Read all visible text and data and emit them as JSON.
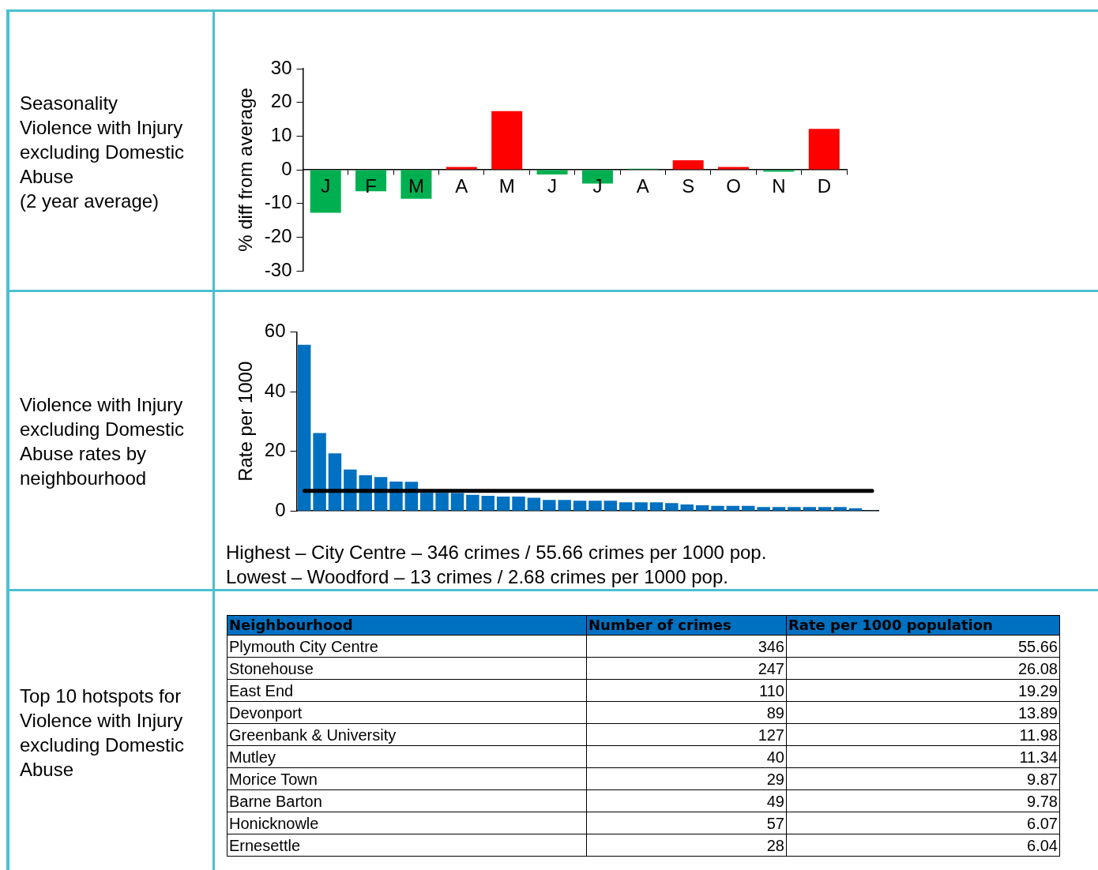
{
  "chart_data": [
    {
      "type": "bar",
      "title": "Seasonality\nViolence with Injury excluding Domestic Abuse\n(2 year average)",
      "ylabel": "% diff from average",
      "categories": [
        "J",
        "F",
        "M",
        "A",
        "M",
        "J",
        "J",
        "A",
        "S",
        "O",
        "N",
        "D"
      ],
      "values": [
        -12.8,
        -6.4,
        -8.6,
        0.8,
        17.4,
        -1.4,
        -4.1,
        0.3,
        2.8,
        0.8,
        -0.6,
        12.1
      ],
      "colors": [
        "#00b050",
        "#00b050",
        "#00b050",
        "#ff0000",
        "#ff0000",
        "#00b050",
        "#00b050",
        "#00b050",
        "#ff0000",
        "#ff0000",
        "#00b050",
        "#ff0000"
      ],
      "ylim": [
        -30,
        30
      ],
      "yticks": [
        -30,
        -20,
        -10,
        0,
        10,
        20,
        30
      ],
      "grid": false,
      "legend": false
    },
    {
      "type": "bar",
      "title": "Violence with Injury excluding Domestic Abuse rates by neighbourhood",
      "ylabel": "Rate per 1000",
      "categories": [
        null,
        null,
        null,
        null,
        null,
        null,
        null,
        null,
        null,
        null,
        null,
        null,
        null,
        null,
        null,
        null,
        null,
        null,
        null,
        null,
        null,
        null,
        null,
        null,
        null,
        null,
        null,
        null,
        null,
        null,
        null,
        null,
        null,
        null,
        null,
        null,
        null,
        null
      ],
      "values": [
        55.66,
        26.08,
        19.29,
        13.89,
        11.98,
        11.34,
        9.87,
        9.78,
        6.07,
        6.04,
        6.0,
        5.4,
        5.1,
        4.8,
        4.8,
        4.4,
        3.7,
        3.7,
        3.4,
        3.4,
        3.4,
        2.9,
        2.9,
        2.9,
        2.6,
        2.2,
        1.9,
        1.7,
        1.7,
        1.7,
        1.3,
        1.3,
        1.3,
        1.3,
        1.3,
        1.3,
        0.9,
        0.2
      ],
      "color": "#0070c0",
      "ylim": [
        0,
        60
      ],
      "yticks": [
        0,
        20,
        40,
        60
      ],
      "grid": false,
      "legend": false,
      "ref_lines": [
        {
          "axis": "y",
          "value": 6.7,
          "color": "#000000"
        }
      ],
      "annotations": [
        "Highest – City Centre – 346 crimes / 55.66 crimes per 1000 pop.",
        "Lowest – Woodford – 13 crimes / 2.68 crimes per 1000 pop."
      ]
    },
    {
      "type": "other",
      "title": "Top 10 hotspots for Violence with Injury excluding Domestic Abuse",
      "xlabel": "Neighbourhood",
      "categories": [
        "Plymouth City Centre",
        "Stonehouse",
        "East End",
        "Devonport",
        "Greenbank & University",
        "Mutley",
        "Morice Town",
        "Barne Barton",
        "Honicknowle",
        "Ernesettle"
      ],
      "series": [
        {
          "name": "Number of crimes",
          "values": [
            346,
            247,
            110,
            89,
            127,
            40,
            29,
            49,
            57,
            28
          ]
        },
        {
          "name": "Rate per 1000 population",
          "values": [
            55.66,
            26.08,
            19.29,
            13.89,
            11.98,
            11.34,
            9.87,
            9.78,
            6.07,
            6.04
          ]
        }
      ],
      "data_labels": true
    }
  ]
}
